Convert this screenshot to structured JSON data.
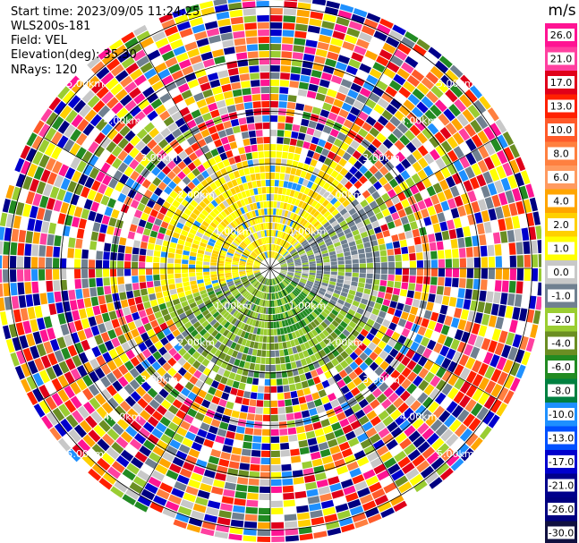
{
  "header": {
    "start_time": "Start time: 2023/09/05 11:24:25",
    "instrument": "WLS200s-181",
    "field": "Field: VEL",
    "elevation": "Elevation(deg): 35.30",
    "nrays": "NRays: 120"
  },
  "ppi": {
    "range_ring_labels": [
      "1.00km",
      "2.00km",
      "3.00km",
      "4.00km",
      "5.00km"
    ],
    "nrays": 120
  },
  "colorbar": {
    "unit": "m/s",
    "tick_labels": [
      "26.0",
      "21.0",
      "17.0",
      "13.0",
      "10.0",
      "8.0",
      "6.0",
      "4.0",
      "2.0",
      "1.0",
      "0.0",
      "-1.0",
      "-2.0",
      "-4.0",
      "-6.0",
      "-8.0",
      "-10.0",
      "-13.0",
      "-17.0",
      "-21.0",
      "-26.0",
      "-30.0"
    ],
    "colors": [
      "#ff1493",
      "#ff40a0",
      "#e0001a",
      "#ff2000",
      "#ff5a2a",
      "#ff8040",
      "#ff9a60",
      "#ffa500",
      "#ffd000",
      "#ffff00",
      "#c8c8c8",
      "#708090",
      "#9acd32",
      "#6b8e23",
      "#228b22",
      "#008040",
      "#1e90ff",
      "#0050ff",
      "#0000cd",
      "#00008b",
      "#000080",
      "#101040"
    ]
  }
}
